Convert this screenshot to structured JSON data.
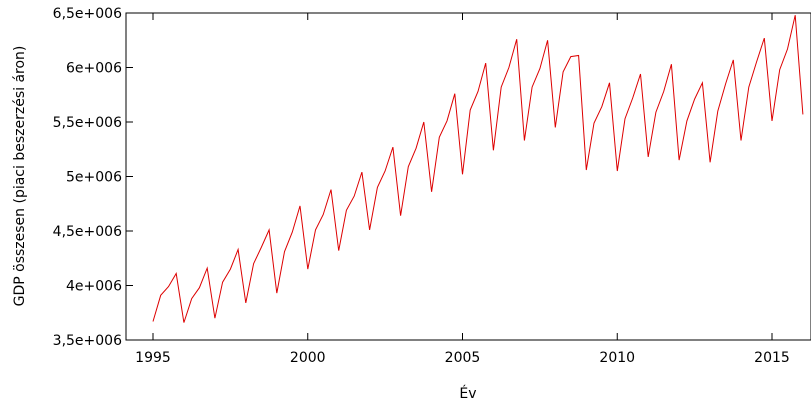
{
  "chart_data": {
    "type": "line",
    "title": "",
    "xlabel": "Év",
    "ylabel": "GDP összesen (piaci beszerzési áron)",
    "xlim": [
      1995,
      2016
    ],
    "ylim": [
      3500000,
      6500000
    ],
    "x_ticks": [
      1995,
      2000,
      2005,
      2010,
      2015
    ],
    "x_tick_labels": [
      "1995",
      "2000",
      "2005",
      "2010",
      "2015"
    ],
    "y_ticks": [
      3500000,
      4000000,
      4500000,
      5000000,
      5500000,
      6000000,
      6500000
    ],
    "y_tick_labels": [
      "3,5e+006",
      "4e+006",
      "4,5e+006",
      "5e+006",
      "5,5e+006",
      "6e+006",
      "6,5e+006"
    ],
    "grid": false,
    "series": [
      {
        "color": "#dd0000",
        "x": [
          1995.0,
          1995.25,
          1995.5,
          1995.75,
          1996.0,
          1996.25,
          1996.5,
          1996.75,
          1997.0,
          1997.25,
          1997.5,
          1997.75,
          1998.0,
          1998.25,
          1998.5,
          1998.75,
          1999.0,
          1999.25,
          1999.5,
          1999.75,
          2000.0,
          2000.25,
          2000.5,
          2000.75,
          2001.0,
          2001.25,
          2001.5,
          2001.75,
          2002.0,
          2002.25,
          2002.5,
          2002.75,
          2003.0,
          2003.25,
          2003.5,
          2003.75,
          2004.0,
          2004.25,
          2004.5,
          2004.75,
          2005.0,
          2005.25,
          2005.5,
          2005.75,
          2006.0,
          2006.25,
          2006.5,
          2006.75,
          2007.0,
          2007.25,
          2007.5,
          2007.75,
          2008.0,
          2008.25,
          2008.5,
          2008.75,
          2009.0,
          2009.25,
          2009.5,
          2009.75,
          2010.0,
          2010.25,
          2010.5,
          2010.75,
          2011.0,
          2011.25,
          2011.5,
          2011.75,
          2012.0,
          2012.25,
          2012.5,
          2012.75,
          2013.0,
          2013.25,
          2013.5,
          2013.75,
          2014.0,
          2014.25,
          2014.5,
          2014.75,
          2015.0,
          2015.25,
          2015.5,
          2015.75,
          2016.0
        ],
        "y": [
          3670000,
          3910000,
          3990000,
          4110000,
          3660000,
          3880000,
          3980000,
          4160000,
          3700000,
          4030000,
          4150000,
          4330000,
          3840000,
          4200000,
          4350000,
          4510000,
          3930000,
          4310000,
          4490000,
          4730000,
          4150000,
          4510000,
          4650000,
          4880000,
          4320000,
          4690000,
          4820000,
          5040000,
          4510000,
          4900000,
          5050000,
          5270000,
          4640000,
          5090000,
          5260000,
          5500000,
          4860000,
          5360000,
          5510000,
          5760000,
          5020000,
          5610000,
          5780000,
          6040000,
          5240000,
          5820000,
          6000000,
          6260000,
          5330000,
          5820000,
          5990000,
          6250000,
          5450000,
          5960000,
          6100000,
          6110000,
          5060000,
          5490000,
          5640000,
          5860000,
          5050000,
          5530000,
          5720000,
          5940000,
          5180000,
          5590000,
          5780000,
          6030000,
          5150000,
          5510000,
          5710000,
          5860000,
          5130000,
          5600000,
          5850000,
          6070000,
          5330000,
          5820000,
          6050000,
          6270000,
          5510000,
          5980000,
          6170000,
          6480000,
          5570000
        ]
      }
    ]
  }
}
